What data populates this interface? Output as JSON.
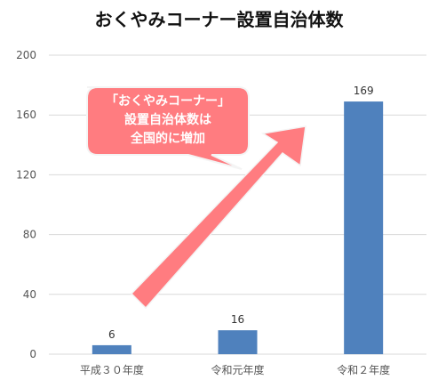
{
  "chart_data": {
    "type": "bar",
    "title": "おくやみコーナー設置自治体数",
    "categories": [
      "平成３０年度",
      "令和元年度",
      "令和２年度"
    ],
    "values": [
      6,
      16,
      169
    ],
    "data_labels": [
      "6",
      "16",
      "169"
    ],
    "ylim": [
      0,
      200
    ],
    "yticks": [
      0,
      40,
      80,
      120,
      160,
      200
    ],
    "ytick_labels": [
      "0",
      "40",
      "80",
      "120",
      "160",
      "200"
    ],
    "grid": true,
    "bar_color": "#4F81BD",
    "annotation": {
      "lines": [
        "「おくやみコーナー」",
        "設置自治体数は",
        "全国的に増加"
      ],
      "color": "#FF7C80"
    }
  }
}
